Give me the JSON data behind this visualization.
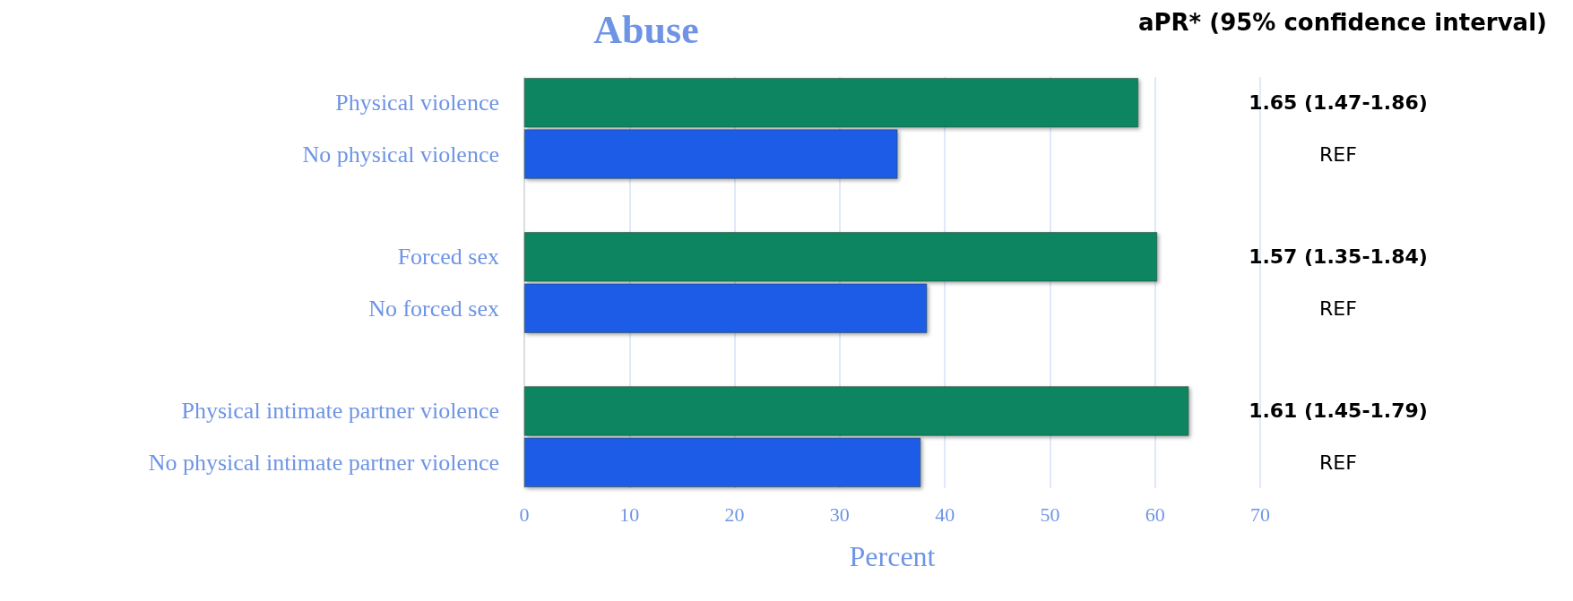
{
  "chart_data": {
    "type": "bar",
    "orientation": "horizontal",
    "title": "Abuse",
    "xlabel": "Percent",
    "categories": [
      "Physical violence",
      "No physical violence",
      null,
      "Forced sex",
      "No forced sex",
      null,
      "Physical intimate partner violence",
      "No physical intimate partner violence"
    ],
    "values": [
      58.4,
      35.5,
      null,
      60.2,
      38.3,
      null,
      63.2,
      37.7
    ],
    "colors": [
      "#078560",
      "#1a5ce6",
      null,
      "#078560",
      "#1a5ce6",
      null,
      "#078560",
      "#1a5ce6"
    ],
    "xlim": [
      0,
      70
    ],
    "xticks": [
      0,
      10,
      20,
      30,
      40,
      50,
      60,
      70
    ],
    "grid": "x",
    "annotations": [
      "aPR* (95% confidence interval)",
      "1.65 (1.47-1.86)",
      "REF",
      "1.57 (1.35-1.84)",
      "REF",
      "1.61 (1.45-1.79)",
      "REF"
    ]
  }
}
